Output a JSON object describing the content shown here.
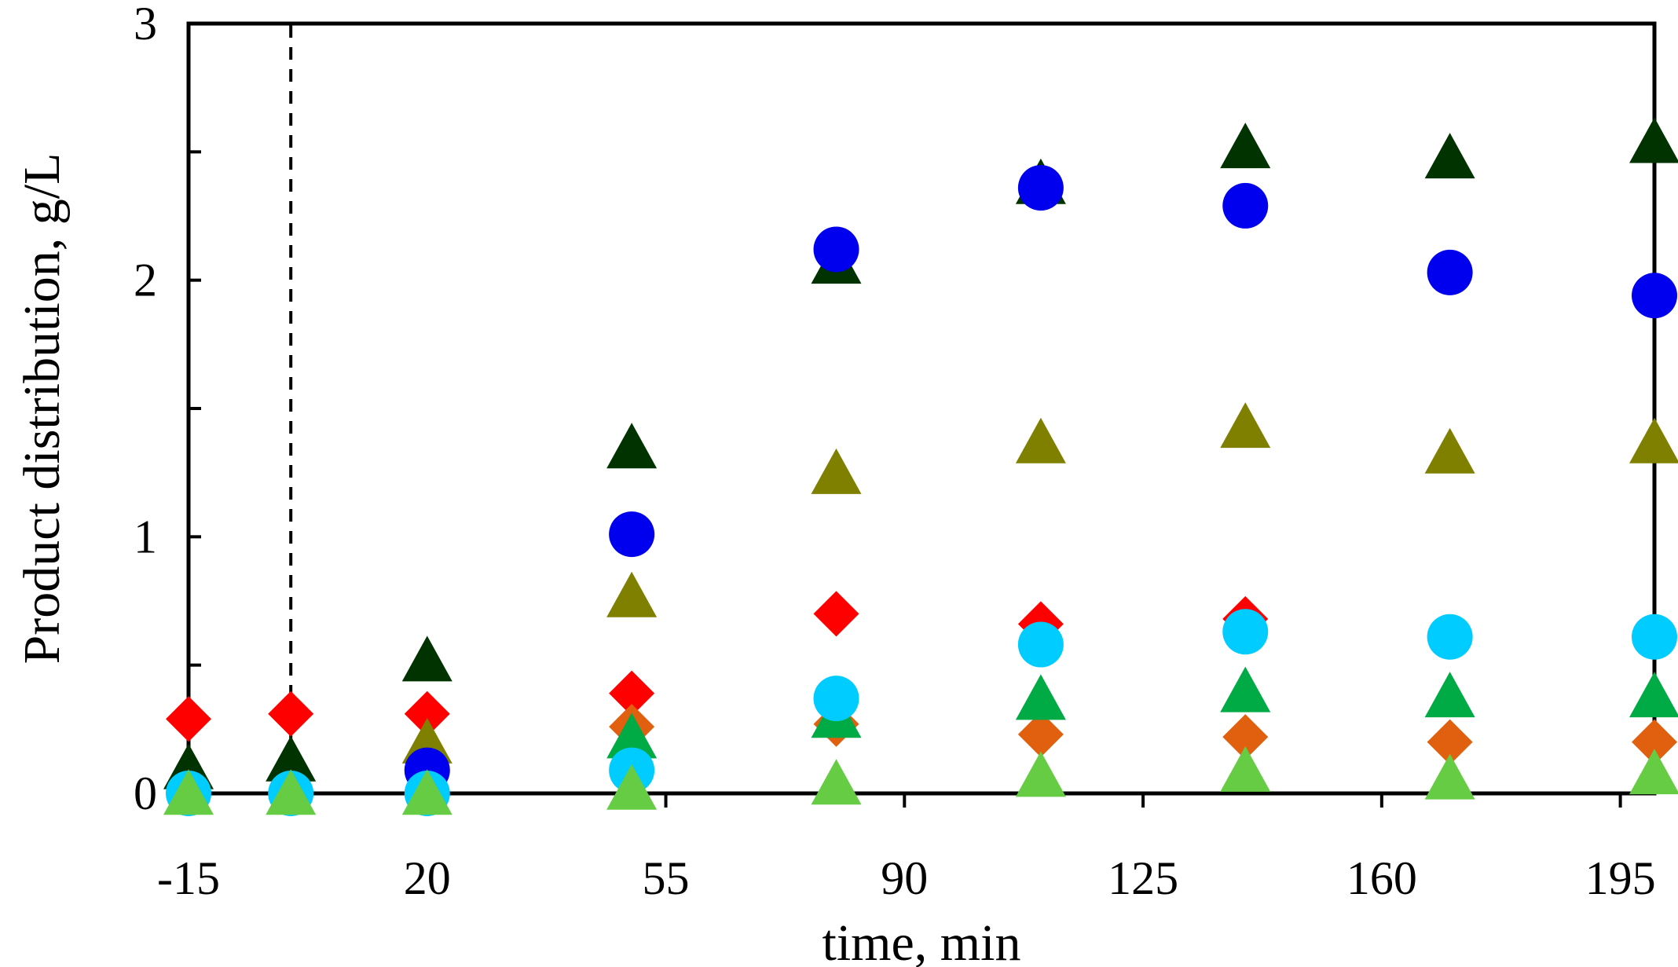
{
  "chart_data": {
    "type": "scatter",
    "xlabel": "time, min",
    "ylabel": "Product distribution, g/L",
    "xlim": [
      -15,
      200
    ],
    "ylim": [
      0,
      3
    ],
    "x_ticks": [
      -15,
      20,
      55,
      90,
      125,
      160,
      195
    ],
    "y_ticks": [
      0,
      1,
      2,
      3
    ],
    "y_minor_ticks": [
      0.5,
      1.5,
      2.5
    ],
    "grid": false,
    "legend": "none",
    "reference_line": {
      "x": 0,
      "style": "dashed"
    },
    "series": [
      {
        "marker": "diamond",
        "color": "#ff0000",
        "x": [
          -15,
          0,
          20,
          50,
          80,
          110,
          140
        ],
        "y": [
          0.29,
          0.31,
          0.31,
          0.39,
          0.7,
          0.66,
          0.68
        ]
      },
      {
        "marker": "diamond",
        "color": "#e06010",
        "x": [
          50,
          80,
          110,
          140,
          170,
          200
        ],
        "y": [
          0.26,
          0.27,
          0.23,
          0.22,
          0.2,
          0.2
        ]
      },
      {
        "marker": "triangle",
        "color": "#003300",
        "x": [
          -15,
          0,
          20,
          50,
          80,
          110,
          140,
          170,
          200
        ],
        "y": [
          0.09,
          0.12,
          0.51,
          1.34,
          2.06,
          2.37,
          2.51,
          2.47,
          2.53
        ]
      },
      {
        "marker": "triangle",
        "color": "#808000",
        "x": [
          20,
          50,
          80,
          110,
          140,
          170,
          200
        ],
        "y": [
          0.19,
          0.76,
          1.24,
          1.36,
          1.42,
          1.32,
          1.36
        ]
      },
      {
        "marker": "triangle",
        "color": "#00aa44",
        "x": [
          50,
          80,
          110,
          140,
          170,
          200
        ],
        "y": [
          0.21,
          0.29,
          0.36,
          0.39,
          0.37,
          0.37
        ]
      },
      {
        "marker": "circle",
        "color": "#0000ee",
        "x": [
          20,
          50,
          80,
          110,
          140,
          170,
          200
        ],
        "y": [
          0.09,
          1.01,
          2.12,
          2.36,
          2.29,
          2.03,
          1.94
        ]
      },
      {
        "marker": "circle",
        "color": "#00ccff",
        "x": [
          -15,
          0,
          20,
          50,
          80,
          110,
          140,
          170,
          200
        ],
        "y": [
          0.0,
          0.0,
          0.0,
          0.09,
          0.37,
          0.58,
          0.63,
          0.61,
          0.61
        ]
      },
      {
        "marker": "triangle",
        "color": "#66cc44",
        "x": [
          -15,
          0,
          20,
          50,
          80,
          110,
          140,
          170,
          200
        ],
        "y": [
          -0.01,
          -0.01,
          -0.01,
          0.01,
          0.03,
          0.06,
          0.08,
          0.05,
          0.07
        ]
      }
    ]
  }
}
